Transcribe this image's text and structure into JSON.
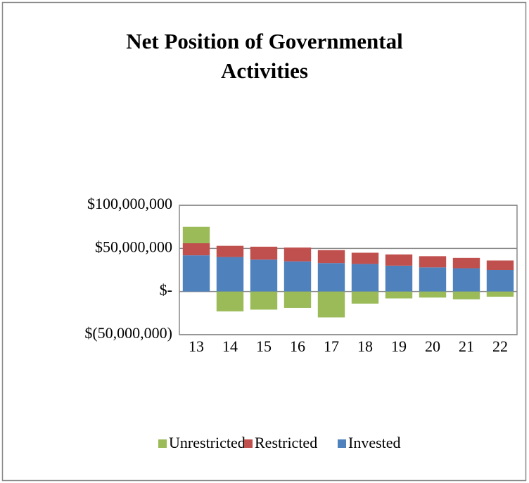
{
  "chart_data": {
    "type": "bar",
    "stacked": true,
    "title": "Net Position of Governmental Activities",
    "categories": [
      "13",
      "14",
      "15",
      "16",
      "17",
      "18",
      "19",
      "20",
      "21",
      "22"
    ],
    "series": [
      {
        "name": "Unrestricted",
        "color": "#9bbb59",
        "values": [
          19000000,
          -23000000,
          -21000000,
          -19000000,
          -30000000,
          -14000000,
          -8000000,
          -7000000,
          -9000000,
          -6000000
        ]
      },
      {
        "name": "Restricted",
        "color": "#c0504d",
        "values": [
          14000000,
          13000000,
          15000000,
          16000000,
          15000000,
          13000000,
          13000000,
          13000000,
          12000000,
          11000000
        ]
      },
      {
        "name": "Invested",
        "color": "#4f81bd",
        "values": [
          42000000,
          40000000,
          37000000,
          35000000,
          33000000,
          32000000,
          30000000,
          28000000,
          27000000,
          25000000
        ]
      }
    ],
    "ylim": [
      -50000000,
      100000000
    ],
    "yticks": [
      {
        "value": -50000000,
        "label": "$(50,000,000)"
      },
      {
        "value": 0,
        "label": "$-"
      },
      {
        "value": 50000000,
        "label": "$50,000,000"
      },
      {
        "value": 100000000,
        "label": "$100,000,000"
      }
    ],
    "grid": true,
    "legend": "bottom"
  }
}
